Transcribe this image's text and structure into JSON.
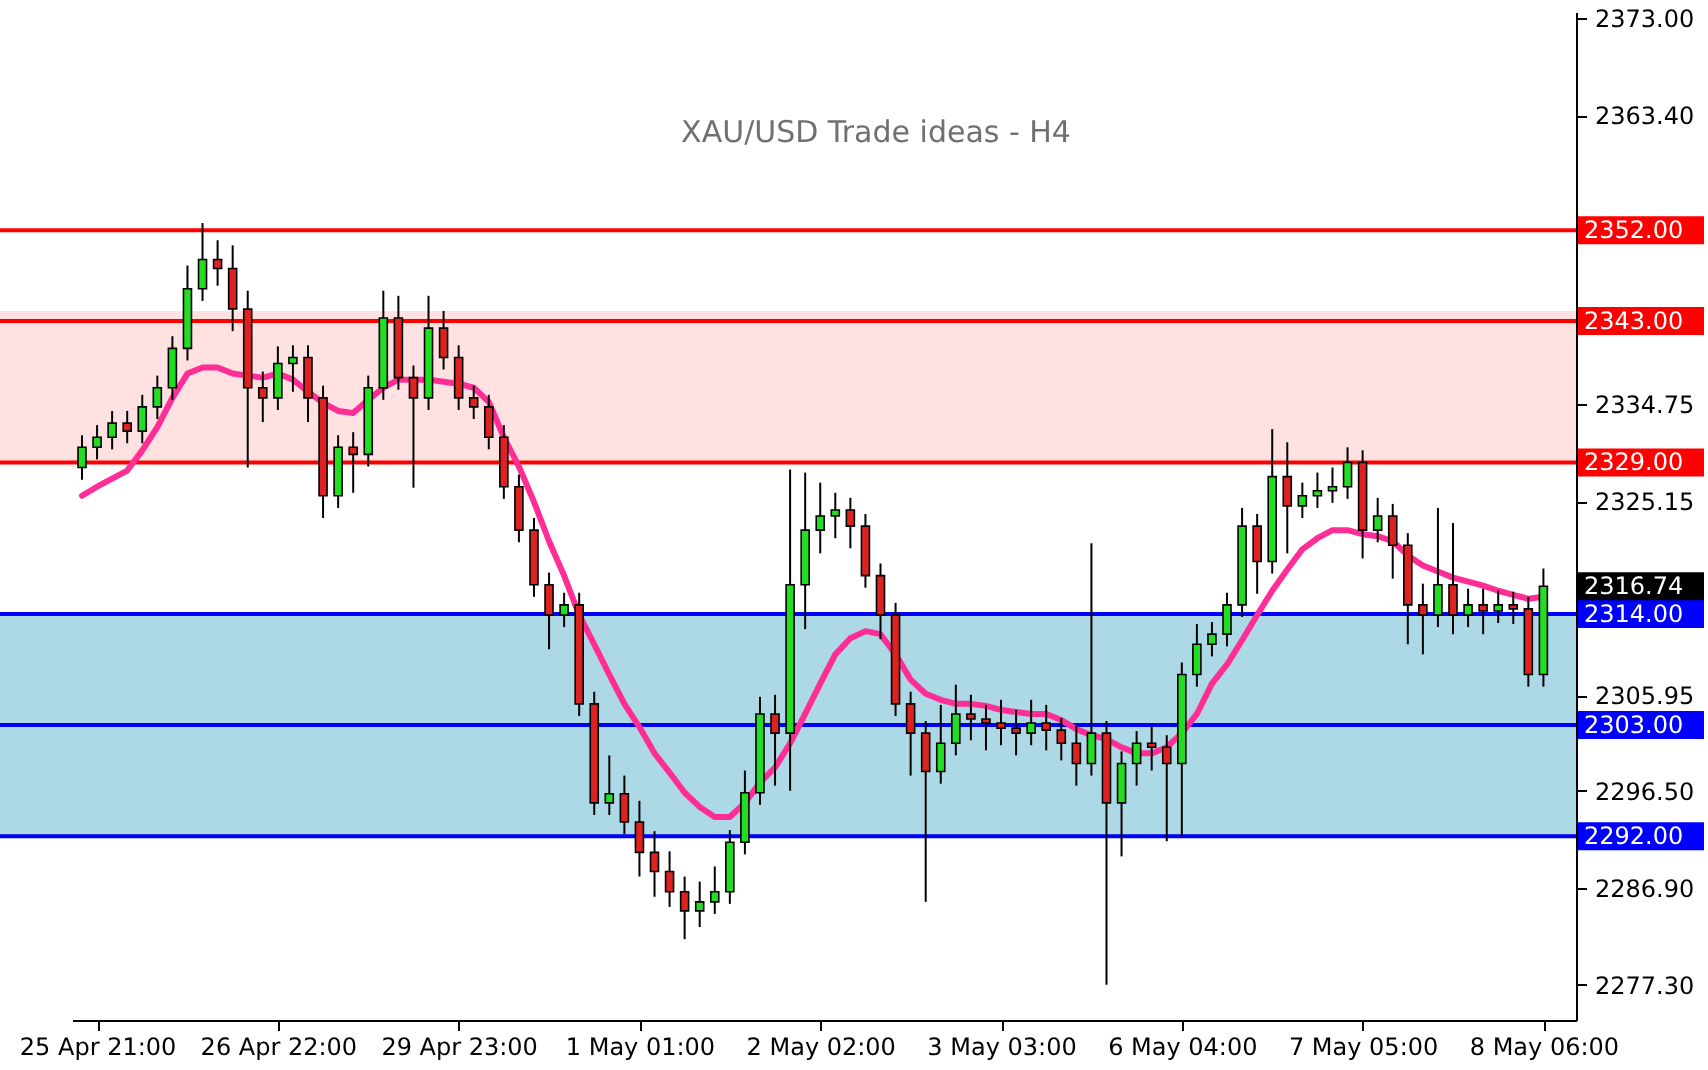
{
  "chart_data": {
    "type": "candlestick",
    "title": "XAU/USD Trade ideas - H4",
    "categories": [
      null,
      "25 Apr 21:00",
      null,
      null,
      null,
      null,
      null,
      null,
      null,
      null,
      null,
      null,
      null,
      "26 Apr 22:00",
      null,
      null,
      null,
      null,
      null,
      null,
      null,
      null,
      null,
      null,
      null,
      "29 Apr 23:00",
      null,
      null,
      null,
      null,
      null,
      null,
      null,
      null,
      null,
      null,
      null,
      "1 May 01:00",
      null,
      null,
      null,
      null,
      null,
      null,
      null,
      null,
      null,
      null,
      null,
      "2 May 02:00",
      null,
      null,
      null,
      null,
      null,
      null,
      null,
      null,
      null,
      null,
      null,
      "3 May 03:00",
      null,
      null,
      null,
      null,
      null,
      null,
      null,
      null,
      null,
      null,
      null,
      "6 May 04:00",
      null,
      null,
      null,
      null,
      null,
      null,
      null,
      null,
      null,
      null,
      null,
      "7 May 05:00",
      null,
      null,
      null,
      null,
      null,
      null,
      null,
      null,
      null,
      null,
      null,
      "8 May 06:00"
    ],
    "ohlc": [
      [
        2328.5,
        2331.7,
        2327.3,
        2330.5
      ],
      [
        2330.5,
        2332.7,
        2329.3,
        2331.5
      ],
      [
        2331.5,
        2334.1,
        2330.3,
        2332.9
      ],
      [
        2332.9,
        2334.1,
        2330.9,
        2332.1
      ],
      [
        2332.1,
        2335.7,
        2330.9,
        2334.5
      ],
      [
        2334.5,
        2337.6,
        2333.3,
        2336.4
      ],
      [
        2336.4,
        2341.5,
        2335.2,
        2340.3
      ],
      [
        2340.3,
        2348.5,
        2339.1,
        2346.2
      ],
      [
        2346.2,
        2352.7,
        2345.0,
        2349.1
      ],
      [
        2349.1,
        2351.0,
        2346.5,
        2348.2
      ],
      [
        2348.2,
        2350.5,
        2342.0,
        2344.2
      ],
      [
        2344.2,
        2346.0,
        2328.5,
        2336.4
      ],
      [
        2336.4,
        2338.0,
        2333.0,
        2335.4
      ],
      [
        2335.4,
        2340.5,
        2334.2,
        2338.8
      ],
      [
        2338.8,
        2340.6,
        2336.0,
        2339.4
      ],
      [
        2339.4,
        2340.6,
        2333.0,
        2335.4
      ],
      [
        2335.4,
        2336.6,
        2323.5,
        2325.7
      ],
      [
        2325.7,
        2331.7,
        2324.5,
        2330.5
      ],
      [
        2330.5,
        2332.0,
        2326.0,
        2329.8
      ],
      [
        2329.8,
        2337.6,
        2328.6,
        2336.4
      ],
      [
        2336.4,
        2346.0,
        2335.2,
        2343.3
      ],
      [
        2343.3,
        2345.5,
        2336.2,
        2337.4
      ],
      [
        2337.4,
        2338.6,
        2326.5,
        2335.4
      ],
      [
        2335.4,
        2345.5,
        2334.2,
        2342.3
      ],
      [
        2342.3,
        2344.0,
        2338.2,
        2339.4
      ],
      [
        2339.4,
        2340.6,
        2334.2,
        2335.4
      ],
      [
        2335.4,
        2336.6,
        2333.3,
        2334.5
      ],
      [
        2334.5,
        2335.7,
        2330.3,
        2331.5
      ],
      [
        2331.5,
        2332.7,
        2325.4,
        2326.6
      ],
      [
        2326.6,
        2327.8,
        2321.1,
        2322.3
      ],
      [
        2322.3,
        2323.5,
        2315.7,
        2316.9
      ],
      [
        2316.9,
        2318.1,
        2310.5,
        2313.9
      ],
      [
        2313.9,
        2316.1,
        2312.7,
        2314.9
      ],
      [
        2314.9,
        2316.1,
        2303.9,
        2305.1
      ],
      [
        2305.1,
        2306.3,
        2294.1,
        2295.3
      ],
      [
        2295.3,
        2300.0,
        2294.1,
        2296.2
      ],
      [
        2296.2,
        2298.0,
        2292.2,
        2293.4
      ],
      [
        2293.4,
        2295.5,
        2288.0,
        2290.4
      ],
      [
        2290.4,
        2292.5,
        2286.0,
        2288.5
      ],
      [
        2288.5,
        2290.5,
        2285.0,
        2286.5
      ],
      [
        2286.5,
        2288.0,
        2281.8,
        2284.6
      ],
      [
        2284.6,
        2287.5,
        2283.0,
        2285.5
      ],
      [
        2285.5,
        2289.0,
        2284.3,
        2286.5
      ],
      [
        2286.5,
        2292.6,
        2285.3,
        2291.4
      ],
      [
        2291.4,
        2298.5,
        2290.2,
        2296.3
      ],
      [
        2296.3,
        2305.8,
        2295.1,
        2304.1
      ],
      [
        2304.1,
        2306.0,
        2297.0,
        2302.2
      ],
      [
        2302.2,
        2328.3,
        2296.5,
        2316.9
      ],
      [
        2316.9,
        2328.0,
        2312.5,
        2322.3
      ],
      [
        2322.3,
        2327.0,
        2320.0,
        2323.7
      ],
      [
        2323.7,
        2326.0,
        2321.5,
        2324.3
      ],
      [
        2324.3,
        2325.5,
        2320.5,
        2322.7
      ],
      [
        2322.7,
        2323.9,
        2316.6,
        2317.8
      ],
      [
        2317.8,
        2319.0,
        2311.5,
        2313.9
      ],
      [
        2313.9,
        2315.1,
        2303.9,
        2305.1
      ],
      [
        2305.1,
        2306.3,
        2298.0,
        2302.2
      ],
      [
        2302.2,
        2303.4,
        2285.5,
        2298.4
      ],
      [
        2298.4,
        2305.0,
        2297.2,
        2301.2
      ],
      [
        2301.2,
        2307.0,
        2300.0,
        2304.1
      ],
      [
        2304.1,
        2306.0,
        2301.5,
        2303.6
      ],
      [
        2303.6,
        2305.0,
        2300.5,
        2303.2
      ],
      [
        2303.2,
        2305.5,
        2301.0,
        2302.7
      ],
      [
        2302.7,
        2304.5,
        2300.0,
        2302.2
      ],
      [
        2302.2,
        2305.5,
        2301.0,
        2303.2
      ],
      [
        2303.2,
        2305.0,
        2300.5,
        2302.5
      ],
      [
        2302.5,
        2303.7,
        2299.5,
        2301.2
      ],
      [
        2301.2,
        2303.0,
        2297.0,
        2299.2
      ],
      [
        2299.2,
        2321.0,
        2298.0,
        2302.2
      ],
      [
        2302.2,
        2303.4,
        2277.3,
        2295.3
      ],
      [
        2295.3,
        2300.4,
        2290.0,
        2299.2
      ],
      [
        2299.2,
        2302.4,
        2297.0,
        2301.2
      ],
      [
        2301.2,
        2303.0,
        2298.5,
        2300.8
      ],
      [
        2300.8,
        2302.0,
        2291.5,
        2299.2
      ],
      [
        2299.2,
        2309.2,
        2292.0,
        2308.0
      ],
      [
        2308.0,
        2313.0,
        2306.8,
        2311.0
      ],
      [
        2311.0,
        2313.2,
        2309.8,
        2312.0
      ],
      [
        2312.0,
        2316.1,
        2310.8,
        2314.9
      ],
      [
        2314.9,
        2324.5,
        2313.7,
        2322.7
      ],
      [
        2322.7,
        2323.9,
        2316.0,
        2319.2
      ],
      [
        2319.2,
        2332.3,
        2318.0,
        2327.6
      ],
      [
        2327.6,
        2331.0,
        2320.0,
        2324.7
      ],
      [
        2324.7,
        2327.0,
        2323.5,
        2325.7
      ],
      [
        2325.7,
        2328.0,
        2324.5,
        2326.2
      ],
      [
        2326.2,
        2328.5,
        2325.0,
        2326.6
      ],
      [
        2326.6,
        2330.5,
        2325.4,
        2329.0
      ],
      [
        2329.0,
        2330.2,
        2319.5,
        2322.3
      ],
      [
        2322.3,
        2325.5,
        2321.1,
        2323.7
      ],
      [
        2323.7,
        2324.9,
        2317.5,
        2320.8
      ],
      [
        2320.8,
        2322.0,
        2311.0,
        2314.9
      ],
      [
        2314.9,
        2317.0,
        2310.0,
        2313.9
      ],
      [
        2313.9,
        2324.5,
        2312.7,
        2316.9
      ],
      [
        2316.9,
        2323.0,
        2312.0,
        2313.9
      ],
      [
        2313.9,
        2316.5,
        2312.7,
        2314.9
      ],
      [
        2314.9,
        2316.5,
        2312.0,
        2314.3
      ],
      [
        2314.3,
        2316.3,
        2313.1,
        2314.9
      ],
      [
        2314.9,
        2316.2,
        2313.0,
        2314.5
      ],
      [
        2314.5,
        2315.7,
        2306.8,
        2308.0
      ],
      [
        2308.0,
        2318.5,
        2306.8,
        2316.74
      ]
    ],
    "colors": [
      "#22dd22",
      "#22dd22",
      "#22dd22",
      "#dd2222",
      "#22dd22",
      "#22dd22",
      "#22dd22",
      "#22dd22",
      "#22dd22",
      "#dd2222",
      "#dd2222",
      "#dd2222",
      "#dd2222",
      "#22dd22",
      "#22dd22",
      "#dd2222",
      "#dd2222",
      "#22dd22",
      "#dd2222",
      "#22dd22",
      "#22dd22",
      "#dd2222",
      "#dd2222",
      "#22dd22",
      "#dd2222",
      "#dd2222",
      "#dd2222",
      "#dd2222",
      "#dd2222",
      "#dd2222",
      "#dd2222",
      "#dd2222",
      "#22dd22",
      "#dd2222",
      "#dd2222",
      "#22dd22",
      "#dd2222",
      "#dd2222",
      "#dd2222",
      "#dd2222",
      "#dd2222",
      "#22dd22",
      "#22dd22",
      "#22dd22",
      "#22dd22",
      "#22dd22",
      "#dd2222",
      "#22dd22",
      "#22dd22",
      "#22dd22",
      "#22dd22",
      "#dd2222",
      "#dd2222",
      "#dd2222",
      "#dd2222",
      "#dd2222",
      "#dd2222",
      "#22dd22",
      "#22dd22",
      "#dd2222",
      "#dd2222",
      "#dd2222",
      "#dd2222",
      "#22dd22",
      "#dd2222",
      "#dd2222",
      "#dd2222",
      "#22dd22",
      "#dd2222",
      "#22dd22",
      "#22dd22",
      "#dd2222",
      "#dd2222",
      "#22dd22",
      "#22dd22",
      "#22dd22",
      "#22dd22",
      "#22dd22",
      "#dd2222",
      "#22dd22",
      "#dd2222",
      "#22dd22",
      "#22dd22",
      "#22dd22",
      "#22dd22",
      "#dd2222",
      "#22dd22",
      "#dd2222",
      "#dd2222",
      "#dd2222",
      "#22dd22",
      "#dd2222",
      "#22dd22",
      "#dd2222",
      "#22dd22",
      "#dd2222",
      "#dd2222",
      "#22dd22"
    ],
    "series": [
      {
        "type": "line",
        "color": "#ff2d95",
        "values": [
          2325.7,
          2326.6,
          2327.4,
          2328.2,
          2330.2,
          2332.5,
          2335.4,
          2337.8,
          2338.4,
          2338.4,
          2337.8,
          2337.6,
          2337.4,
          2337.8,
          2337.2,
          2336.0,
          2334.9,
          2334.1,
          2333.9,
          2335.2,
          2336.4,
          2337.2,
          2337.2,
          2337.2,
          2337.0,
          2336.8,
          2336.4,
          2335.0,
          2331.5,
          2328.6,
          2325.1,
          2321.2,
          2317.8,
          2313.9,
          2311.0,
          2308.0,
          2305.1,
          2302.8,
          2300.2,
          2298.3,
          2296.3,
          2294.9,
          2293.9,
          2293.9,
          2295.3,
          2297.3,
          2298.8,
          2301.2,
          2304.1,
          2307.1,
          2310.0,
          2311.6,
          2312.3,
          2312.0,
          2310.0,
          2307.5,
          2306.1,
          2305.5,
          2305.1,
          2305.1,
          2304.9,
          2304.5,
          2304.3,
          2304.1,
          2304.1,
          2303.5,
          2302.6,
          2302.0,
          2301.6,
          2300.8,
          2300.2,
          2300.2,
          2300.8,
          2302.2,
          2304.1,
          2307.1,
          2309.0,
          2311.4,
          2313.9,
          2316.3,
          2318.4,
          2320.4,
          2321.5,
          2322.3,
          2322.3,
          2321.9,
          2321.7,
          2321.2,
          2319.8,
          2318.8,
          2318.2,
          2317.6,
          2317.2,
          2316.8,
          2316.3,
          2315.9,
          2315.5,
          2315.7
        ]
      }
    ],
    "ylim": [
      2273.8,
      2373.6
    ],
    "yticks": [
      {
        "value": 2277.3,
        "label": "2277.30"
      },
      {
        "value": 2286.9,
        "label": "2286.90"
      },
      {
        "value": 2296.5,
        "label": "2296.50"
      },
      2305.95,
      2325.15,
      2334.75,
      {
        "value": 2363.4,
        "label": "2363.40"
      },
      {
        "value": 2373.0,
        "label": "2373.00"
      }
    ],
    "ref_lines": [
      {
        "axis": "y",
        "value": 2352.0,
        "label": "2352.00",
        "color": "#ff0000"
      },
      {
        "axis": "y",
        "value": 2343.0,
        "label": "2343.00",
        "color": "#ff0000"
      },
      {
        "axis": "y",
        "value": 2329.0,
        "label": "2329.00",
        "color": "#ff0000"
      },
      {
        "axis": "y",
        "value": 2314.0,
        "label": "2314.00",
        "color": "#0000ff"
      },
      {
        "axis": "y",
        "value": 2303.0,
        "label": "2303.00",
        "color": "#0000ff"
      },
      {
        "axis": "y",
        "value": 2292.0,
        "label": "2292.00",
        "color": "#0000ff"
      }
    ],
    "bands": [
      {
        "axis": "y",
        "from": 2329.0,
        "to": 2344.0,
        "color": "#ffe1e1"
      },
      {
        "axis": "y",
        "from": 2292.0,
        "to": 2314.0,
        "color": "#add8e6"
      }
    ],
    "annotations": [
      "2316.74"
    ]
  }
}
